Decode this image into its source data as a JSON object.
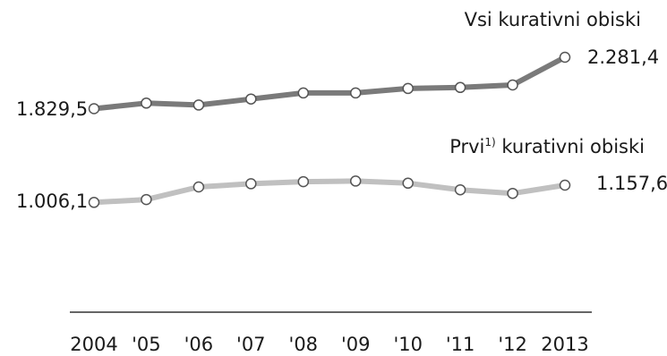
{
  "chart_data": {
    "type": "line",
    "categories": [
      "2004",
      "'05",
      "'06",
      "'07",
      "'08",
      "'09",
      "'10",
      "'11",
      "'12",
      "2013"
    ],
    "series": [
      {
        "name": "Vsi kurativni obiski",
        "color": "#7a7a7a",
        "values": [
          1829.5,
          1878,
          1862,
          1914,
          1968,
          1968,
          2007,
          2016,
          2038,
          2281.4
        ],
        "start_label": "1.829,5",
        "end_label": "2.281,4"
      },
      {
        "name_main": "Prvi",
        "name_sup": "1)",
        "name_rest": " kurativni obiski",
        "color": "#c0c0c0",
        "values": [
          1006.1,
          1031,
          1142,
          1170,
          1188,
          1194,
          1175,
          1117,
          1085,
          1157.6
        ],
        "start_label": "1.006,1",
        "end_label": "1.157,6"
      }
    ],
    "grid": false
  }
}
